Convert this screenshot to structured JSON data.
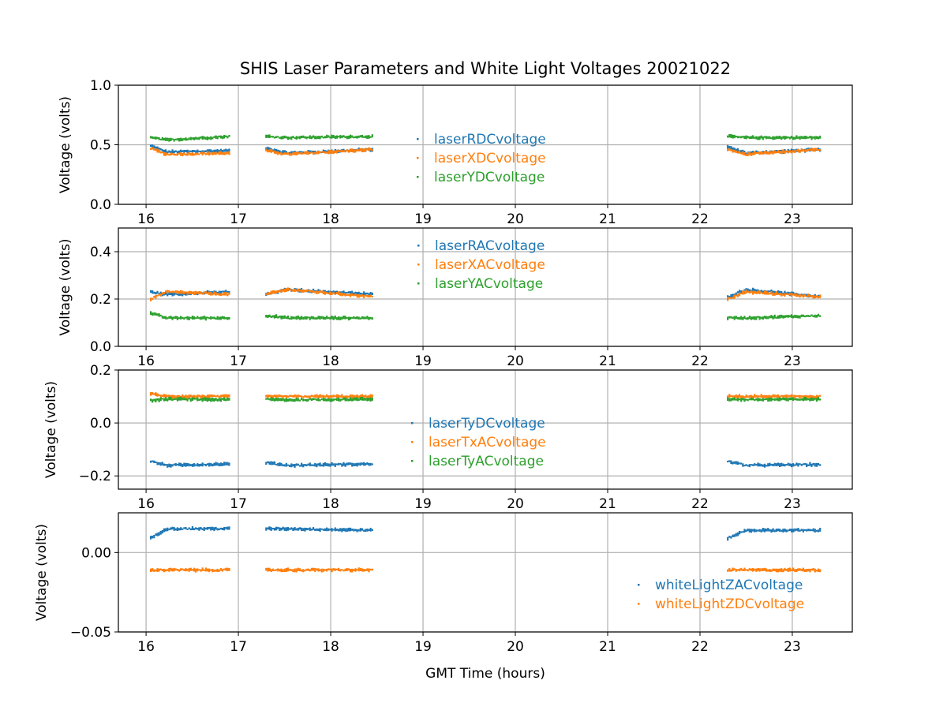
{
  "figure": {
    "title": "SHIS Laser Parameters and White Light Voltages 20021022",
    "xlabel": "GMT Time (hours)"
  },
  "chart_data": [
    {
      "type": "scatter",
      "ylabel": "Voltage (volts)",
      "xlim": [
        15.7,
        23.65
      ],
      "ylim": [
        0.0,
        1.0
      ],
      "xticks": [
        16,
        17,
        18,
        19,
        20,
        21,
        22,
        23
      ],
      "xtick_labels": [
        "16",
        "17",
        "18",
        "19",
        "20",
        "21",
        "22",
        "23"
      ],
      "yticks": [
        0.0,
        0.5,
        1.0
      ],
      "ytick_labels": [
        "0.0",
        "0.5",
        "1.0"
      ],
      "legend": {
        "position": "center"
      },
      "series": [
        {
          "name": "laserRDCvoltage",
          "color": "#1f77b4",
          "segments": [
            {
              "x": [
                16.05,
                16.9
              ],
              "y_start": 0.49,
              "y_dip": 0.44,
              "y_end": 0.45
            },
            {
              "x": [
                17.3,
                18.45
              ],
              "y_start": 0.47,
              "y_dip": 0.43,
              "y_end": 0.46
            },
            {
              "x": [
                22.3,
                23.3
              ],
              "y_start": 0.48,
              "y_dip": 0.43,
              "y_end": 0.46
            }
          ]
        },
        {
          "name": "laserXDCvoltage",
          "color": "#ff7f0e",
          "segments": [
            {
              "x": [
                16.05,
                16.9
              ],
              "y_start": 0.47,
              "y_dip": 0.42,
              "y_end": 0.43
            },
            {
              "x": [
                17.3,
                18.45
              ],
              "y_start": 0.45,
              "y_dip": 0.42,
              "y_end": 0.46
            },
            {
              "x": [
                22.3,
                23.3
              ],
              "y_start": 0.46,
              "y_dip": 0.42,
              "y_end": 0.46
            }
          ]
        },
        {
          "name": "laserYDCvoltage",
          "color": "#2ca02c",
          "segments": [
            {
              "x": [
                16.05,
                16.9
              ],
              "y_start": 0.56,
              "y_dip": 0.54,
              "y_end": 0.57
            },
            {
              "x": [
                17.3,
                18.45
              ],
              "y_start": 0.57,
              "y_dip": 0.56,
              "y_end": 0.57
            },
            {
              "x": [
                22.3,
                23.3
              ],
              "y_start": 0.57,
              "y_dip": 0.56,
              "y_end": 0.56
            }
          ]
        }
      ]
    },
    {
      "type": "scatter",
      "ylabel": "Voltage (volts)",
      "xlim": [
        15.7,
        23.65
      ],
      "ylim": [
        0.0,
        0.5
      ],
      "xticks": [
        16,
        17,
        18,
        19,
        20,
        21,
        22,
        23
      ],
      "xtick_labels": [
        "16",
        "17",
        "18",
        "19",
        "20",
        "21",
        "22",
        "23"
      ],
      "yticks": [
        0.0,
        0.2,
        0.4
      ],
      "ytick_labels": [
        "0.0",
        "0.2",
        "0.4"
      ],
      "legend": {
        "position": "upper-center"
      },
      "series": [
        {
          "name": "laserRACvoltage",
          "color": "#1f77b4",
          "segments": [
            {
              "x": [
                16.05,
                16.9
              ],
              "y_start": 0.23,
              "y_dip": 0.22,
              "y_end": 0.23
            },
            {
              "x": [
                17.3,
                18.45
              ],
              "y_start": 0.22,
              "y_dip": 0.24,
              "y_end": 0.22
            },
            {
              "x": [
                22.3,
                23.3
              ],
              "y_start": 0.21,
              "y_dip": 0.24,
              "y_end": 0.21
            }
          ]
        },
        {
          "name": "laserXACvoltage",
          "color": "#ff7f0e",
          "segments": [
            {
              "x": [
                16.05,
                16.9
              ],
              "y_start": 0.2,
              "y_dip": 0.23,
              "y_end": 0.22
            },
            {
              "x": [
                17.3,
                18.45
              ],
              "y_start": 0.22,
              "y_dip": 0.24,
              "y_end": 0.21
            },
            {
              "x": [
                22.3,
                23.3
              ],
              "y_start": 0.2,
              "y_dip": 0.23,
              "y_end": 0.21
            }
          ]
        },
        {
          "name": "laserYACvoltage",
          "color": "#2ca02c",
          "segments": [
            {
              "x": [
                16.05,
                16.9
              ],
              "y_start": 0.14,
              "y_dip": 0.12,
              "y_end": 0.12
            },
            {
              "x": [
                17.3,
                18.45
              ],
              "y_start": 0.13,
              "y_dip": 0.12,
              "y_end": 0.12
            },
            {
              "x": [
                22.3,
                23.3
              ],
              "y_start": 0.12,
              "y_dip": 0.12,
              "y_end": 0.13
            }
          ]
        }
      ]
    },
    {
      "type": "scatter",
      "ylabel": "Voltage (volts)",
      "xlim": [
        15.7,
        23.65
      ],
      "ylim": [
        -0.25,
        0.2
      ],
      "xticks": [
        16,
        17,
        18,
        19,
        20,
        21,
        22,
        23
      ],
      "xtick_labels": [
        "16",
        "17",
        "18",
        "19",
        "20",
        "21",
        "22",
        "23"
      ],
      "yticks": [
        -0.2,
        0.0,
        0.2
      ],
      "ytick_labels": [
        "−0.2",
        "0.0",
        "0.2"
      ],
      "legend": {
        "position": "lower-center"
      },
      "series": [
        {
          "name": "laserTyDCvoltage",
          "color": "#1f77b4",
          "segments": [
            {
              "x": [
                16.05,
                16.9
              ],
              "y_start": -0.145,
              "y_dip": -0.16,
              "y_end": -0.155
            },
            {
              "x": [
                17.3,
                18.45
              ],
              "y_start": -0.15,
              "y_dip": -0.16,
              "y_end": -0.155
            },
            {
              "x": [
                22.3,
                23.3
              ],
              "y_start": -0.145,
              "y_dip": -0.16,
              "y_end": -0.157
            }
          ]
        },
        {
          "name": "laserTxACvoltage",
          "color": "#ff7f0e",
          "segments": [
            {
              "x": [
                16.05,
                16.9
              ],
              "y_start": 0.11,
              "y_dip": 0.1,
              "y_end": 0.1
            },
            {
              "x": [
                17.3,
                18.45
              ],
              "y_start": 0.1,
              "y_dip": 0.1,
              "y_end": 0.1
            },
            {
              "x": [
                22.3,
                23.3
              ],
              "y_start": 0.1,
              "y_dip": 0.1,
              "y_end": 0.1
            }
          ]
        },
        {
          "name": "laserTyACvoltage",
          "color": "#2ca02c",
          "segments": [
            {
              "x": [
                16.05,
                16.9
              ],
              "y_start": 0.085,
              "y_dip": 0.09,
              "y_end": 0.088
            },
            {
              "x": [
                17.3,
                18.45
              ],
              "y_start": 0.09,
              "y_dip": 0.087,
              "y_end": 0.09
            },
            {
              "x": [
                22.3,
                23.3
              ],
              "y_start": 0.09,
              "y_dip": 0.088,
              "y_end": 0.09
            }
          ]
        }
      ]
    },
    {
      "type": "scatter",
      "ylabel": "Voltage (volts)",
      "xlim": [
        15.7,
        23.65
      ],
      "ylim": [
        -0.05,
        0.025
      ],
      "xticks": [
        16,
        17,
        18,
        19,
        20,
        21,
        22,
        23
      ],
      "xtick_labels": [
        "16",
        "17",
        "18",
        "19",
        "20",
        "21",
        "22",
        "23"
      ],
      "yticks": [
        -0.05,
        0.0
      ],
      "ytick_labels": [
        "−0.05",
        "0.00"
      ],
      "legend": {
        "position": "lower-right"
      },
      "series": [
        {
          "name": "whiteLightZACvoltage",
          "color": "#1f77b4",
          "segments": [
            {
              "x": [
                16.05,
                16.9
              ],
              "y_start": 0.009,
              "y_dip": 0.015,
              "y_end": 0.015
            },
            {
              "x": [
                17.3,
                18.45
              ],
              "y_start": 0.015,
              "y_dip": 0.015,
              "y_end": 0.014
            },
            {
              "x": [
                22.3,
                23.3
              ],
              "y_start": 0.009,
              "y_dip": 0.014,
              "y_end": 0.014
            }
          ]
        },
        {
          "name": "whiteLightZDCvoltage",
          "color": "#ff7f0e",
          "segments": [
            {
              "x": [
                16.05,
                16.9
              ],
              "y_start": -0.011,
              "y_dip": -0.011,
              "y_end": -0.011
            },
            {
              "x": [
                17.3,
                18.45
              ],
              "y_start": -0.011,
              "y_dip": -0.011,
              "y_end": -0.011
            },
            {
              "x": [
                22.3,
                23.3
              ],
              "y_start": -0.011,
              "y_dip": -0.011,
              "y_end": -0.011
            }
          ]
        }
      ]
    }
  ]
}
